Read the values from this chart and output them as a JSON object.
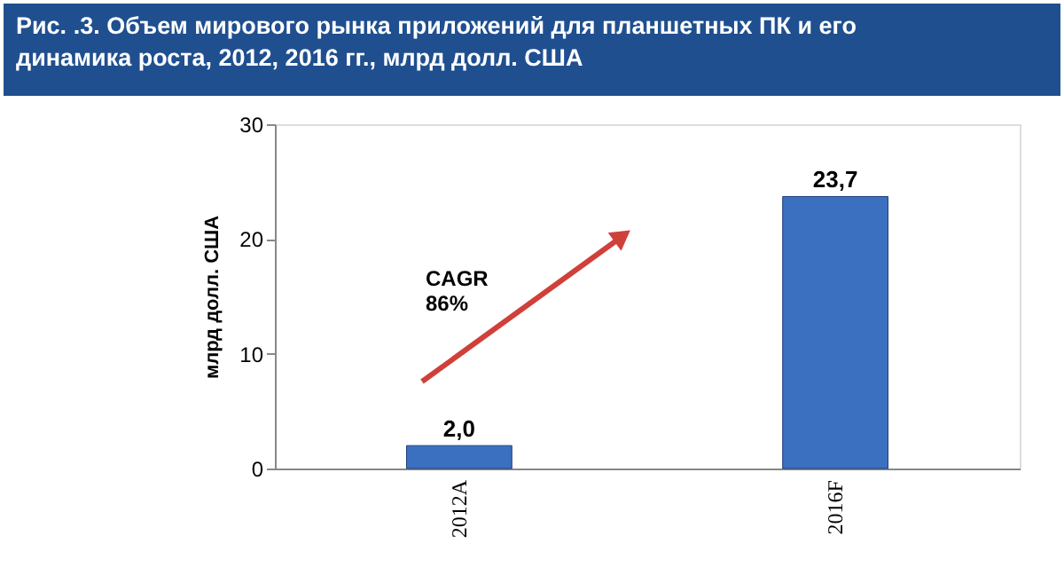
{
  "chart_data": {
    "type": "bar",
    "title": "Рис. .3. Объем мирового рынка приложений для планшетных ПК и его\nдинамика роста, 2012, 2016 гг., млрд долл. США",
    "ylabel": "млрд долл. США",
    "categories": [
      "2012A",
      "2016F"
    ],
    "values": [
      2.0,
      23.7
    ],
    "value_labels": [
      "2,0",
      "23,7"
    ],
    "color": "#3b6fc0",
    "ylim": [
      0,
      30
    ],
    "yticks": [
      0,
      10,
      20,
      30
    ],
    "grid": false,
    "annotations": [
      "CAGR\n86%"
    ]
  }
}
